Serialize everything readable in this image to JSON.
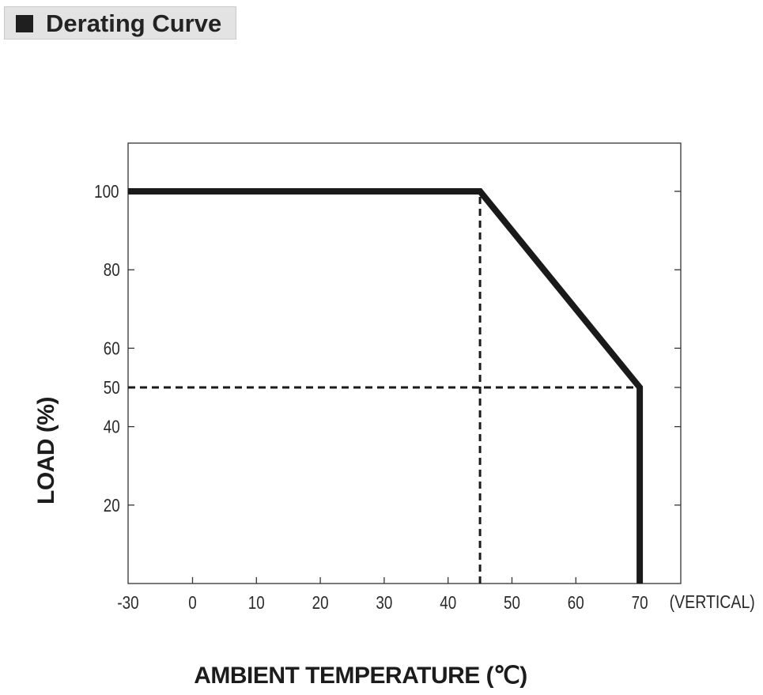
{
  "header": {
    "title": "Derating Curve"
  },
  "chart_data": {
    "type": "line",
    "title": "Derating Curve",
    "xlabel": "AMBIENT TEMPERATURE (℃)",
    "ylabel": "LOAD (%)",
    "x_ticks": [
      -30,
      0,
      10,
      20,
      30,
      40,
      50,
      60,
      70
    ],
    "x_tick_labels": [
      "-30",
      "0",
      "10",
      "20",
      "30",
      "40",
      "50",
      "60",
      "70"
    ],
    "x_extra_label": "(VERTICAL)",
    "y_ticks": [
      20,
      40,
      50,
      60,
      80,
      100
    ],
    "y_tick_labels": [
      "20",
      "40",
      "50",
      "60",
      "80",
      "100"
    ],
    "series": [
      {
        "x": [
          -30,
          45,
          70,
          70
        ],
        "y": [
          100,
          100,
          50,
          0
        ]
      }
    ],
    "reference_lines": [
      {
        "x": [
          45,
          45
        ],
        "y": [
          0,
          100
        ],
        "style": "dashed"
      },
      {
        "x": [
          -30,
          70
        ],
        "y": [
          50,
          50
        ],
        "style": "dashed"
      }
    ],
    "xlim": [
      -30,
      77
    ],
    "ylim": [
      0,
      112
    ],
    "grid": false,
    "colors": {
      "line": "#1a1a1a",
      "frame": "#333333"
    }
  }
}
